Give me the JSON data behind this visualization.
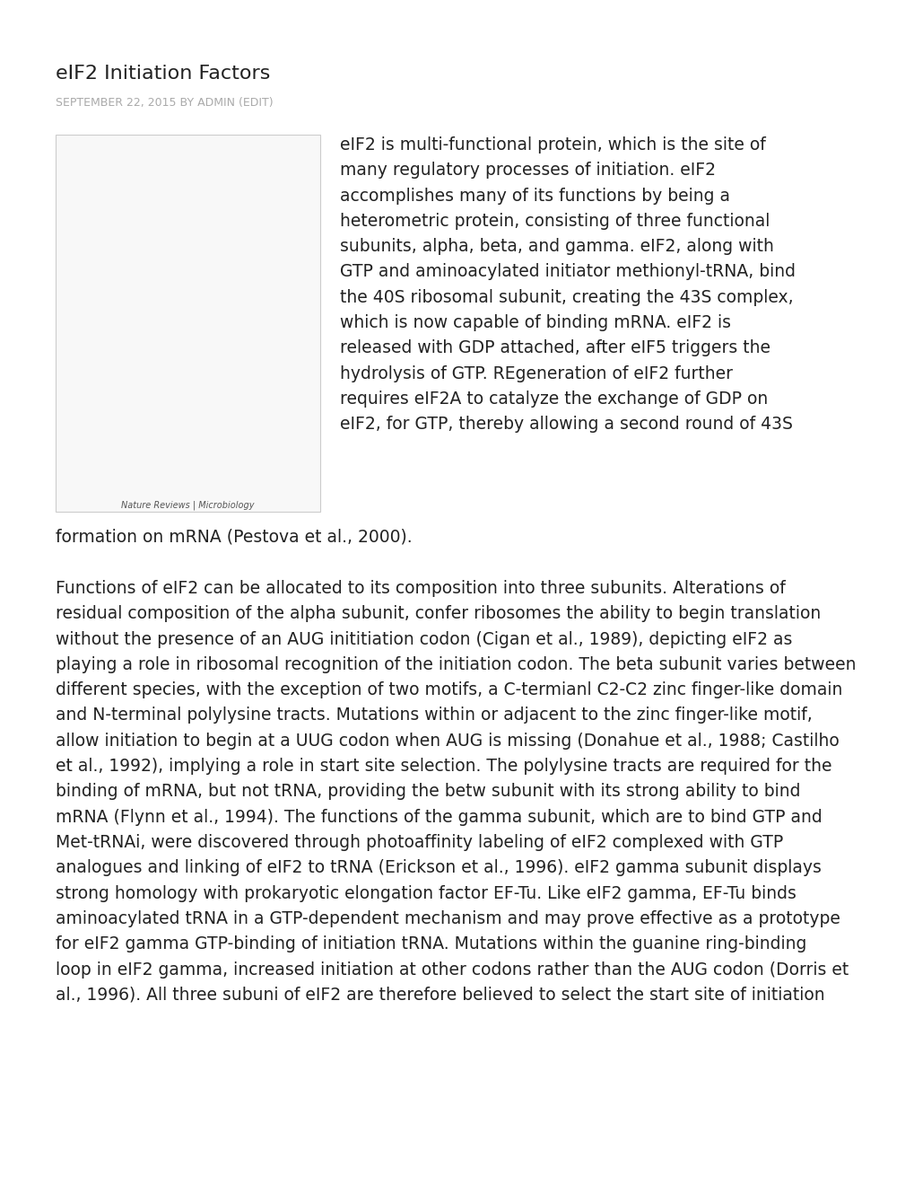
{
  "title": "eIF2 Initiation Factors",
  "date_line": "SEPTEMBER 22, 2015 BY ADMIN (EDIT)",
  "title_color": "#222222",
  "date_color": "#aaaaaa",
  "bg_color": "#ffffff",
  "paragraph1_right": "eIF2 is multi-functional protein, which is the site of\nmany regulatory processes of initiation. eIF2\naccomplishes many of its functions by being a\nheterometric protein, consisting of three functional\nsubunits, alpha, beta, and gamma. eIF2, along with\nGTP and aminoacylated initiator methionyl-tRNA, bind\nthe 40S ribosomal subunit, creating the 43S complex,\nwhich is now capable of binding mRNA. eIF2 is\nreleased with GDP attached, after eIF5 triggers the\nhydrolysis of GTP. REgeneration of eIF2 further\nrequires eIF2A to catalyze the exchange of GDP on\neIF2, for GTP, thereby allowing a second round of 43S",
  "paragraph1_below": "formation on mRNA (Pestova et al., 2000).",
  "paragraph2": "Functions of eIF2 can be allocated to its composition into three subunits. Alterations of\nresidual composition of the alpha subunit, confer ribosomes the ability to begin translation\nwithout the presence of an AUG inititiation codon (Cigan et al., 1989), depicting eIF2 as\nplaying a role in ribosomal recognition of the initiation codon. The beta subunit varies between\ndifferent species, with the exception of two motifs, a C-termianl C2-C2 zinc finger-like domain\nand N-terminal polylysine tracts. Mutations within or adjacent to the zinc finger-like motif,\nallow initiation to begin at a UUG codon when AUG is missing (Donahue et al., 1988; Castilho\net al., 1992), implying a role in start site selection. The polylysine tracts are required for the\nbinding of mRNA, but not tRNA, providing the betw subunit with its strong ability to bind\nmRNA (Flynn et al., 1994). The functions of the gamma subunit, which are to bind GTP and\nMet-tRNAi, were discovered through photoaffinity labeling of eIF2 complexed with GTP\nanalogues and linking of eIF2 to tRNA (Erickson et al., 1996). eIF2 gamma subunit displays\nstrong homology with prokaryotic elongation factor EF-Tu. Like eIF2 gamma, EF-Tu binds\naminoacylated tRNA in a GTP-dependent mechanism and may prove effective as a prototype\nfor eIF2 gamma GTP-binding of initiation tRNA. Mutations within the guanine ring-binding\nloop in eIF2 gamma, increased initiation at other codons rather than the AUG codon (Dorris et\nal., 1996). All three subuni of eIF2 are therefore believed to select the start site of initiation",
  "paragraph2_link_phrase": "initiation tRNA",
  "link_color": "#1a7abf",
  "text_color": "#222222",
  "text_fontsize": 13.5,
  "title_fontsize": 16,
  "date_fontsize": 9,
  "diagram_label": "Nature Reviews | Microbiology",
  "diagram_bg": "#f8f8f8",
  "diagram_border": "#cccccc"
}
